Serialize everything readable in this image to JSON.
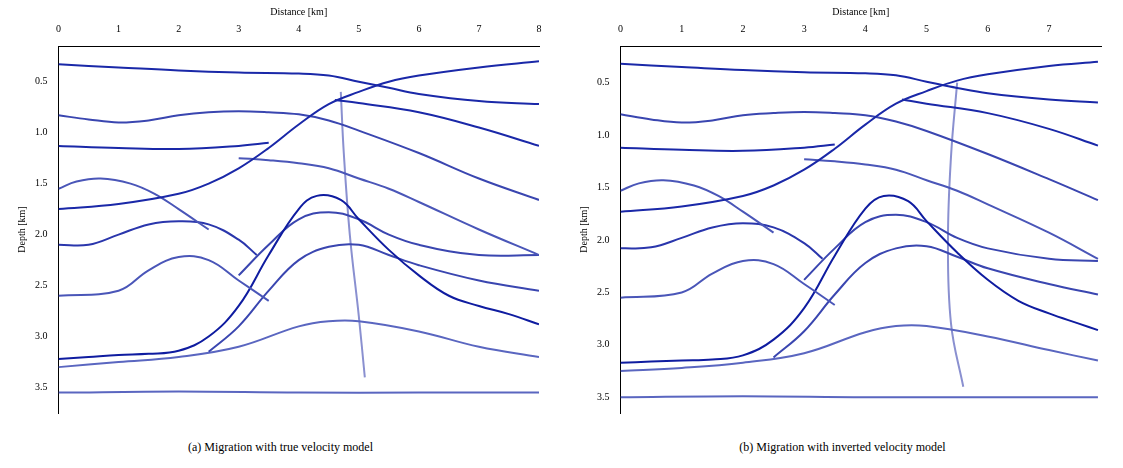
{
  "chart_data": [
    {
      "type": "line",
      "caption": "(a) Migration with true velocity model",
      "x_label": "Distance [km]",
      "y_label": "Depth [km]",
      "xlim": [
        0,
        8
      ],
      "xticks": [
        0,
        1,
        2,
        3,
        4,
        5,
        6,
        7,
        8
      ],
      "ylim": [
        0.15,
        3.75
      ],
      "yticks": [
        {
          "value": 0.5,
          "label": "0.5"
        },
        {
          "value": 1.0,
          "label": "1.0"
        },
        {
          "value": 1.5,
          "label": "1.5"
        },
        {
          "value": 2.0,
          "label": "2.0"
        },
        {
          "value": 2.5,
          "label": "2.5"
        },
        {
          "value": 3.0,
          "label": "3.0"
        },
        {
          "value": 3.5,
          "label": "3.5"
        }
      ],
      "grid": false,
      "series": [
        {
          "color": "#1a28a8",
          "x": [
            0,
            1,
            2,
            3,
            4,
            4.5,
            5,
            5.5,
            6,
            7,
            8
          ],
          "values": [
            0.33,
            0.36,
            0.39,
            0.41,
            0.42,
            0.44,
            0.5,
            0.56,
            0.62,
            0.69,
            0.72
          ]
        },
        {
          "color": "#1a28a8",
          "x": [
            0,
            1,
            2,
            2.5,
            3,
            3.5,
            4,
            4.5,
            5,
            5.5,
            6,
            7,
            8
          ],
          "values": [
            1.75,
            1.7,
            1.6,
            1.5,
            1.35,
            1.15,
            0.92,
            0.72,
            0.6,
            0.5,
            0.44,
            0.36,
            0.3
          ]
        },
        {
          "color": "#3a46b0",
          "x": [
            0,
            0.5,
            1,
            1.5,
            2,
            2.5,
            3,
            3.5,
            4,
            4.5,
            5,
            6,
            7,
            8
          ],
          "values": [
            0.83,
            0.87,
            0.9,
            0.88,
            0.83,
            0.8,
            0.79,
            0.8,
            0.82,
            0.88,
            0.98,
            1.2,
            1.45,
            1.66
          ]
        },
        {
          "color": "#1a28a8",
          "x": [
            0,
            1,
            2,
            3,
            3.5
          ],
          "values": [
            1.13,
            1.15,
            1.16,
            1.13,
            1.1
          ]
        },
        {
          "color": "#1a28a8",
          "x": [
            4.6,
            5,
            6,
            7,
            8
          ],
          "values": [
            0.68,
            0.71,
            0.8,
            0.95,
            1.13
          ]
        },
        {
          "color": "#4a56b8",
          "x": [
            3,
            3.5,
            4,
            4.5,
            5,
            5.5,
            6,
            7,
            8
          ],
          "values": [
            1.25,
            1.27,
            1.3,
            1.35,
            1.45,
            1.55,
            1.68,
            1.95,
            2.2
          ]
        },
        {
          "color": "#4a56b8",
          "x": [
            0,
            0.3,
            0.7,
            1.2,
            1.6,
            2,
            2.5
          ],
          "values": [
            1.55,
            1.48,
            1.45,
            1.5,
            1.6,
            1.75,
            1.95
          ]
        },
        {
          "color": "#2a36ac",
          "x": [
            0,
            0.5,
            1,
            1.5,
            2,
            2.5,
            3,
            3.3
          ],
          "values": [
            2.1,
            2.1,
            2.0,
            1.9,
            1.87,
            1.9,
            2.05,
            2.2
          ]
        },
        {
          "color": "#4a56b8",
          "x": [
            0,
            1,
            1.5,
            2,
            2.5,
            3,
            3.5
          ],
          "values": [
            2.6,
            2.55,
            2.35,
            2.22,
            2.25,
            2.45,
            2.65
          ]
        },
        {
          "color": "#0f1ca0",
          "x": [
            0,
            0.5,
            1,
            1.5,
            2,
            2.5,
            3,
            3.5,
            4,
            4.3,
            4.7,
            5,
            5.5,
            6,
            6.5,
            7,
            7.5,
            8
          ],
          "values": [
            3.22,
            3.2,
            3.18,
            3.17,
            3.14,
            3.0,
            2.7,
            2.2,
            1.75,
            1.62,
            1.66,
            1.85,
            2.15,
            2.4,
            2.6,
            2.7,
            2.78,
            2.88
          ]
        },
        {
          "color": "#3a46b0",
          "x": [
            3,
            3.5,
            4,
            4.5,
            5,
            5.5,
            6,
            7,
            8
          ],
          "values": [
            2.4,
            2.1,
            1.85,
            1.78,
            1.85,
            2.0,
            2.1,
            2.2,
            2.2
          ]
        },
        {
          "color": "#3a46b0",
          "x": [
            2.5,
            3,
            3.5,
            4,
            4.5,
            5,
            5.5,
            6,
            7,
            8
          ],
          "values": [
            3.15,
            2.9,
            2.55,
            2.25,
            2.12,
            2.1,
            2.2,
            2.3,
            2.45,
            2.55
          ]
        },
        {
          "color": "#5a66c0",
          "x": [
            0,
            1,
            2,
            3,
            4,
            4.5,
            5,
            6,
            7,
            8
          ],
          "values": [
            3.3,
            3.25,
            3.2,
            3.1,
            2.9,
            2.85,
            2.85,
            2.95,
            3.1,
            3.2
          ]
        },
        {
          "color": "#5a66c0",
          "x": [
            0,
            2,
            4,
            6,
            8
          ],
          "values": [
            3.55,
            3.54,
            3.55,
            3.55,
            3.55
          ]
        },
        {
          "color": "#8a90d0",
          "x": [
            4.7,
            4.75,
            4.85,
            5,
            5.1
          ],
          "values": [
            0.6,
            1.2,
            2.0,
            2.8,
            3.4
          ]
        }
      ]
    },
    {
      "type": "line",
      "caption": "(b) Migration with inverted velocity model",
      "x_label": "Distance [km]",
      "y_label": "Depth [km]",
      "xlim": [
        0,
        7.85
      ],
      "xticks": [
        0,
        1,
        2,
        3,
        4,
        5,
        6,
        7
      ],
      "ylim": [
        0.15,
        3.65
      ],
      "yticks": [
        {
          "value": 0.5,
          "label": "0.5"
        },
        {
          "value": 1.0,
          "label": "1.0"
        },
        {
          "value": 1.5,
          "label": "1.5"
        },
        {
          "value": 2.0,
          "label": "2.0"
        },
        {
          "value": 2.5,
          "label": "2.5"
        },
        {
          "value": 3.0,
          "label": "3.0"
        },
        {
          "value": 3.5,
          "label": "3.5"
        }
      ],
      "grid": false,
      "series": [
        {
          "color": "#1a28a8",
          "x": [
            0,
            1,
            2,
            3,
            4,
            4.5,
            5,
            5.5,
            6,
            7,
            7.8
          ],
          "values": [
            0.32,
            0.35,
            0.38,
            0.4,
            0.41,
            0.43,
            0.49,
            0.55,
            0.6,
            0.66,
            0.69
          ]
        },
        {
          "color": "#1a28a8",
          "x": [
            0,
            1,
            2,
            2.5,
            3,
            3.5,
            4,
            4.5,
            5,
            5.5,
            6,
            7,
            7.8
          ],
          "values": [
            1.73,
            1.68,
            1.58,
            1.48,
            1.33,
            1.13,
            0.9,
            0.7,
            0.58,
            0.48,
            0.42,
            0.34,
            0.3
          ]
        },
        {
          "color": "#3a46b0",
          "x": [
            0,
            0.5,
            1,
            1.5,
            2,
            2.5,
            3,
            3.5,
            4,
            4.5,
            5,
            6,
            7,
            7.8
          ],
          "values": [
            0.8,
            0.85,
            0.88,
            0.86,
            0.81,
            0.79,
            0.78,
            0.79,
            0.81,
            0.87,
            0.96,
            1.18,
            1.42,
            1.62
          ]
        },
        {
          "color": "#1a28a8",
          "x": [
            0,
            1,
            2,
            3,
            3.5
          ],
          "values": [
            1.12,
            1.14,
            1.15,
            1.12,
            1.09
          ]
        },
        {
          "color": "#1a28a8",
          "x": [
            4.6,
            5,
            6,
            7,
            7.8
          ],
          "values": [
            0.66,
            0.7,
            0.79,
            0.94,
            1.1
          ]
        },
        {
          "color": "#4a56b8",
          "x": [
            3,
            3.5,
            4,
            4.5,
            5,
            5.5,
            6,
            7,
            7.8
          ],
          "values": [
            1.23,
            1.25,
            1.28,
            1.33,
            1.43,
            1.53,
            1.66,
            1.93,
            2.18
          ]
        },
        {
          "color": "#4a56b8",
          "x": [
            0,
            0.3,
            0.7,
            1.2,
            1.6,
            2,
            2.5
          ],
          "values": [
            1.53,
            1.46,
            1.43,
            1.48,
            1.58,
            1.73,
            1.93
          ]
        },
        {
          "color": "#2a36ac",
          "x": [
            0,
            0.5,
            1,
            1.5,
            2,
            2.5,
            3,
            3.3
          ],
          "values": [
            2.08,
            2.07,
            1.98,
            1.88,
            1.84,
            1.88,
            2.03,
            2.18
          ]
        },
        {
          "color": "#4a56b8",
          "x": [
            0,
            1,
            1.5,
            2,
            2.5,
            3,
            3.5
          ],
          "values": [
            2.55,
            2.5,
            2.32,
            2.2,
            2.23,
            2.42,
            2.62
          ]
        },
        {
          "color": "#0f1ca0",
          "x": [
            0,
            0.5,
            1,
            1.5,
            2,
            2.5,
            3,
            3.5,
            4,
            4.3,
            4.7,
            5,
            5.5,
            6,
            6.5,
            7,
            7.5,
            7.8
          ],
          "values": [
            3.17,
            3.16,
            3.15,
            3.14,
            3.1,
            2.95,
            2.65,
            2.15,
            1.7,
            1.58,
            1.63,
            1.82,
            2.12,
            2.38,
            2.58,
            2.7,
            2.8,
            2.86
          ]
        },
        {
          "color": "#3a46b0",
          "x": [
            3,
            3.5,
            4,
            4.5,
            5,
            5.5,
            6,
            7,
            7.8
          ],
          "values": [
            2.38,
            2.08,
            1.83,
            1.76,
            1.83,
            1.98,
            2.08,
            2.18,
            2.2
          ]
        },
        {
          "color": "#3a46b0",
          "x": [
            2.5,
            3,
            3.5,
            4,
            4.5,
            5,
            5.5,
            6,
            7,
            7.8
          ],
          "values": [
            3.12,
            2.87,
            2.52,
            2.22,
            2.08,
            2.06,
            2.16,
            2.27,
            2.42,
            2.52
          ]
        },
        {
          "color": "#5a66c0",
          "x": [
            0,
            1,
            2,
            3,
            4,
            4.5,
            5,
            6,
            7,
            7.8
          ],
          "values": [
            3.25,
            3.22,
            3.17,
            3.08,
            2.88,
            2.82,
            2.82,
            2.92,
            3.05,
            3.15
          ]
        },
        {
          "color": "#5a66c0",
          "x": [
            0,
            2,
            4,
            6,
            7.8
          ],
          "values": [
            3.5,
            3.49,
            3.5,
            3.5,
            3.5
          ]
        },
        {
          "color": "#8a90d0",
          "x": [
            5.5,
            5.4,
            5.35,
            5.4,
            5.6
          ],
          "values": [
            0.5,
            1.2,
            2.0,
            2.8,
            3.4
          ]
        }
      ]
    }
  ]
}
